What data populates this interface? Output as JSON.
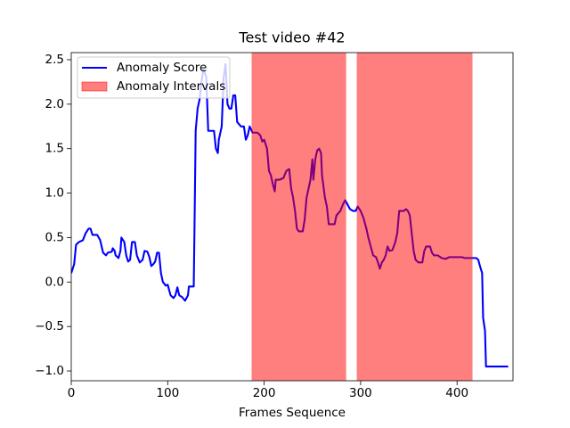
{
  "chart_data": {
    "type": "line",
    "title": "Test video #42",
    "x_label": "Frames Sequence",
    "xlim": [
      0,
      458
    ],
    "ylim": [
      -1.11,
      2.58
    ],
    "xticks": [
      0,
      100,
      200,
      300,
      400
    ],
    "yticks": [
      {
        "value": -1.0,
        "label": "−1.0"
      },
      {
        "value": -0.5,
        "label": "−0.5"
      },
      {
        "value": 0.0,
        "label": "0.0"
      },
      0.5,
      {
        "value": 1.0,
        "label": "1.0"
      },
      1.5,
      {
        "value": 2.0,
        "label": "2.0"
      },
      2.5
    ],
    "legend": "upper left",
    "series": [
      {
        "name": "Anomaly Score",
        "color": "#0000ff",
        "x": [
          0,
          3,
          5,
          8,
          12,
          15,
          18,
          20,
          22,
          27,
          30,
          33,
          36,
          38,
          42,
          43,
          45,
          46,
          49,
          51,
          52,
          55,
          57,
          59,
          61,
          63,
          66,
          68,
          71,
          74,
          76,
          79,
          81,
          83,
          85,
          87,
          89,
          91,
          93,
          95,
          98,
          100,
          103,
          106,
          108,
          110,
          112,
          115,
          118,
          121,
          122,
          127,
          128,
          129,
          131,
          133,
          135,
          137,
          140,
          142,
          148,
          150,
          152,
          153,
          156,
          158,
          160,
          162,
          164,
          166,
          168,
          170,
          172,
          176,
          179,
          181,
          183,
          185,
          188,
          193,
          196,
          198,
          200,
          203,
          205,
          207,
          209,
          211,
          212,
          216,
          220,
          223,
          226,
          228,
          230,
          232,
          234,
          236,
          240,
          242,
          244,
          246,
          248,
          250,
          251,
          253,
          255,
          257,
          259,
          260,
          263,
          265,
          267,
          273,
          275,
          279,
          282,
          284,
          286,
          289,
          292,
          295,
          297,
          300,
          303,
          306,
          308,
          310,
          313,
          316,
          318,
          320,
          322,
          324,
          326,
          328,
          330,
          333,
          336,
          338,
          340,
          345,
          347,
          349,
          351,
          353,
          355,
          357,
          360,
          364,
          366,
          368,
          372,
          374,
          376,
          380,
          384,
          388,
          392,
          398,
          401,
          405,
          408,
          415,
          420,
          422,
          424,
          426,
          427,
          429,
          430,
          435,
          445,
          453
        ],
        "values": [
          0.1,
          0.2,
          0.42,
          0.45,
          0.47,
          0.55,
          0.6,
          0.6,
          0.53,
          0.53,
          0.47,
          0.33,
          0.3,
          0.33,
          0.34,
          0.38,
          0.35,
          0.3,
          0.27,
          0.35,
          0.5,
          0.45,
          0.3,
          0.23,
          0.25,
          0.45,
          0.45,
          0.3,
          0.22,
          0.25,
          0.35,
          0.34,
          0.28,
          0.18,
          0.2,
          0.23,
          0.33,
          0.33,
          0.1,
          0.0,
          -0.04,
          -0.03,
          -0.15,
          -0.18,
          -0.15,
          -0.06,
          -0.15,
          -0.17,
          -0.21,
          -0.15,
          -0.05,
          -0.05,
          0.8,
          1.7,
          1.95,
          2.05,
          2.25,
          2.4,
          2.3,
          1.7,
          1.7,
          1.5,
          1.45,
          1.6,
          1.75,
          2.3,
          2.45,
          2.0,
          1.95,
          1.95,
          2.1,
          2.1,
          1.8,
          1.75,
          1.75,
          1.6,
          1.65,
          1.75,
          1.68,
          1.68,
          1.65,
          1.58,
          1.6,
          1.5,
          1.25,
          1.2,
          1.1,
          1.02,
          1.15,
          1.15,
          1.17,
          1.25,
          1.27,
          1.05,
          0.95,
          0.8,
          0.6,
          0.57,
          0.57,
          0.7,
          0.95,
          1.05,
          1.15,
          1.38,
          1.15,
          1.38,
          1.48,
          1.5,
          1.45,
          1.2,
          0.95,
          0.85,
          0.65,
          0.65,
          0.75,
          0.8,
          0.88,
          0.92,
          0.88,
          0.82,
          0.8,
          0.8,
          0.85,
          0.8,
          0.72,
          0.6,
          0.5,
          0.42,
          0.3,
          0.28,
          0.22,
          0.15,
          0.22,
          0.25,
          0.3,
          0.4,
          0.35,
          0.36,
          0.45,
          0.55,
          0.8,
          0.8,
          0.82,
          0.8,
          0.75,
          0.55,
          0.35,
          0.25,
          0.22,
          0.22,
          0.35,
          0.4,
          0.4,
          0.33,
          0.3,
          0.3,
          0.27,
          0.26,
          0.28,
          0.28,
          0.28,
          0.28,
          0.27,
          0.27,
          0.27,
          0.25,
          0.17,
          0.1,
          -0.4,
          -0.55,
          -0.95,
          -0.95,
          -0.95,
          -0.95
        ]
      }
    ],
    "intervals": {
      "name": "Anomaly Intervals",
      "color": "#ff0000",
      "opacity": 0.5,
      "ranges": [
        [
          187,
          285
        ],
        [
          296,
          416
        ]
      ]
    }
  }
}
